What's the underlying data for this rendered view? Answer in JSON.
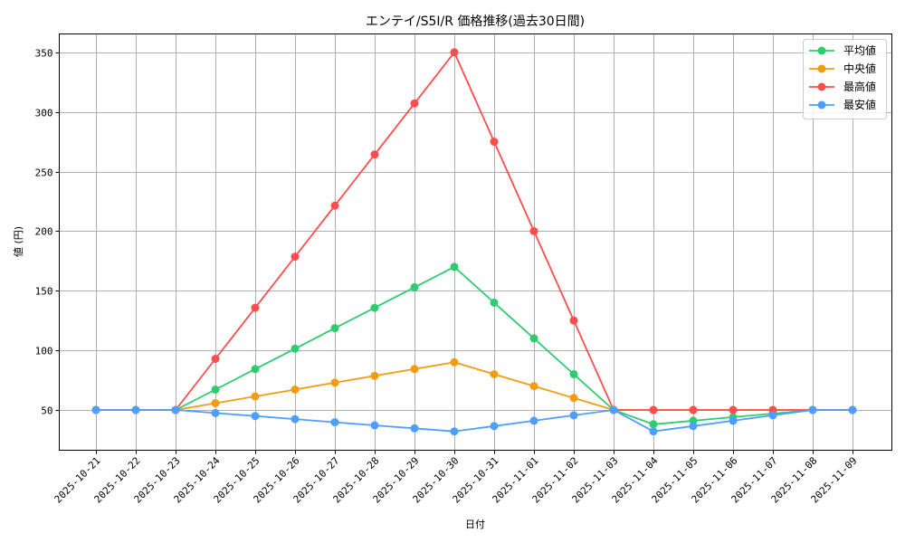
{
  "chart_data": {
    "type": "line",
    "title": "エンテイ/S5I/R 価格推移(過去30日間)",
    "xlabel": "日付",
    "ylabel": "値 (円)",
    "ylim": [
      15,
      366
    ],
    "yticks": [
      50,
      100,
      150,
      200,
      250,
      300,
      350
    ],
    "grid": true,
    "legend_position": "upper right",
    "categories": [
      "2025-10-21",
      "2025-10-22",
      "2025-10-23",
      "2025-10-24",
      "2025-10-25",
      "2025-10-26",
      "2025-10-27",
      "2025-10-28",
      "2025-10-29",
      "2025-10-30",
      "2025-10-31",
      "2025-11-01",
      "2025-11-02",
      "2025-11-03",
      "2025-11-04",
      "2025-11-05",
      "2025-11-06",
      "2025-11-07",
      "2025-11-08",
      "2025-11-09"
    ],
    "series": [
      {
        "name": "平均値",
        "color": "#2ecc71",
        "values": [
          50,
          50,
          50,
          67.1,
          84.3,
          101.4,
          118.6,
          135.7,
          152.9,
          170,
          140,
          110,
          80,
          50,
          38,
          41,
          44,
          47,
          50,
          50
        ]
      },
      {
        "name": "中央値",
        "color": "#f39c12",
        "values": [
          50,
          50,
          50,
          55.7,
          61.4,
          67.1,
          72.9,
          78.6,
          84.3,
          90,
          80,
          70,
          60,
          50,
          50,
          50,
          50,
          50,
          50,
          50
        ]
      },
      {
        "name": "最高値",
        "color": "#ff4d4d",
        "values": [
          50,
          50,
          50,
          92.9,
          135.7,
          178.6,
          221.4,
          264.3,
          307.1,
          350,
          275,
          200,
          125,
          50,
          50,
          50,
          50,
          50,
          50,
          50
        ]
      },
      {
        "name": "最安値",
        "color": "#4d9fff",
        "values": [
          50,
          50,
          50,
          47.4,
          44.9,
          42.3,
          39.7,
          37.1,
          34.6,
          32,
          36.5,
          41,
          45.5,
          50,
          32,
          36.5,
          41,
          45.5,
          50,
          50
        ]
      }
    ]
  },
  "colors": {
    "grid": "#b0b0b0",
    "frame": "#000000",
    "legend_border": "#cccccc"
  }
}
